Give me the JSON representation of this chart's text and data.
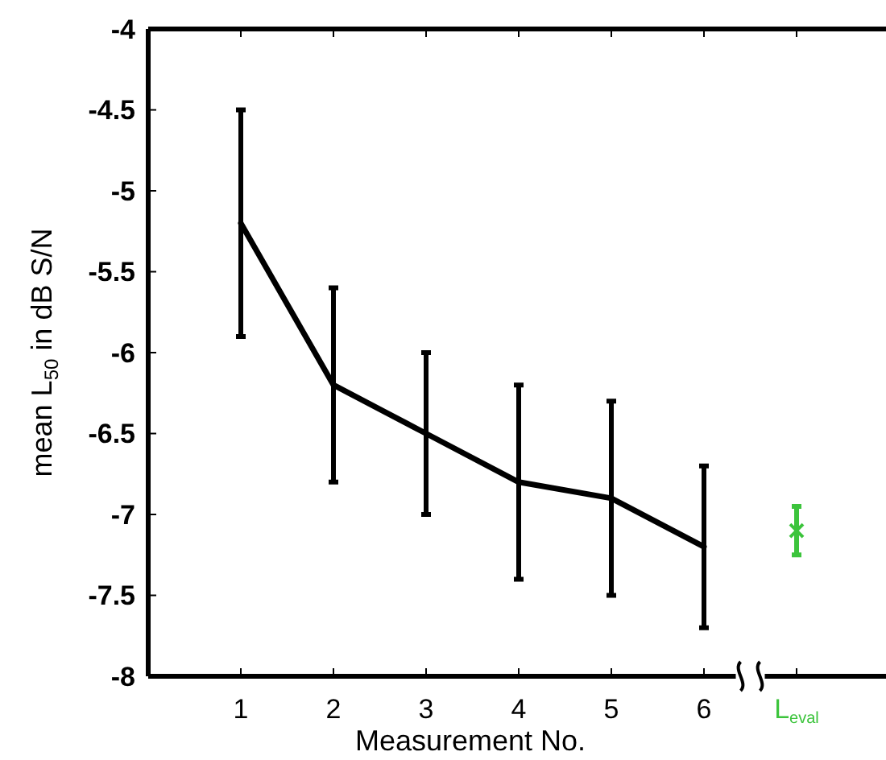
{
  "chart_data": {
    "type": "line",
    "xlabel": "Measurement No.",
    "ylabel": "mean L$_{50}$ in dB S/N",
    "categories": [
      "1",
      "2",
      "3",
      "4",
      "5",
      "6",
      "L$_{eval}$"
    ],
    "ylim": [
      -8,
      -4
    ],
    "yticks": [
      -8,
      -7.5,
      -7,
      -6.5,
      -6,
      -5.5,
      -5,
      -4.5,
      -4
    ],
    "grid": false,
    "series": [
      {
        "color": "#000000",
        "marker": "none",
        "values": [
          -5.2,
          -6.2,
          -6.5,
          -6.8,
          -6.9,
          -7.2,
          null
        ],
        "errors": [
          [
            -5.9,
            -4.5
          ],
          [
            -6.8,
            -5.6
          ],
          [
            -7.0,
            -6.0
          ],
          [
            -7.4,
            -6.2
          ],
          [
            -7.5,
            -6.3
          ],
          [
            -7.7,
            -6.7
          ],
          null
        ]
      },
      {
        "type": "scatter",
        "color": "#3cc43c",
        "marker": "cross",
        "values": [
          null,
          null,
          null,
          null,
          null,
          null,
          -7.1
        ],
        "errors": [
          null,
          null,
          null,
          null,
          null,
          null,
          [
            -7.25,
            -6.95
          ]
        ]
      }
    ]
  }
}
